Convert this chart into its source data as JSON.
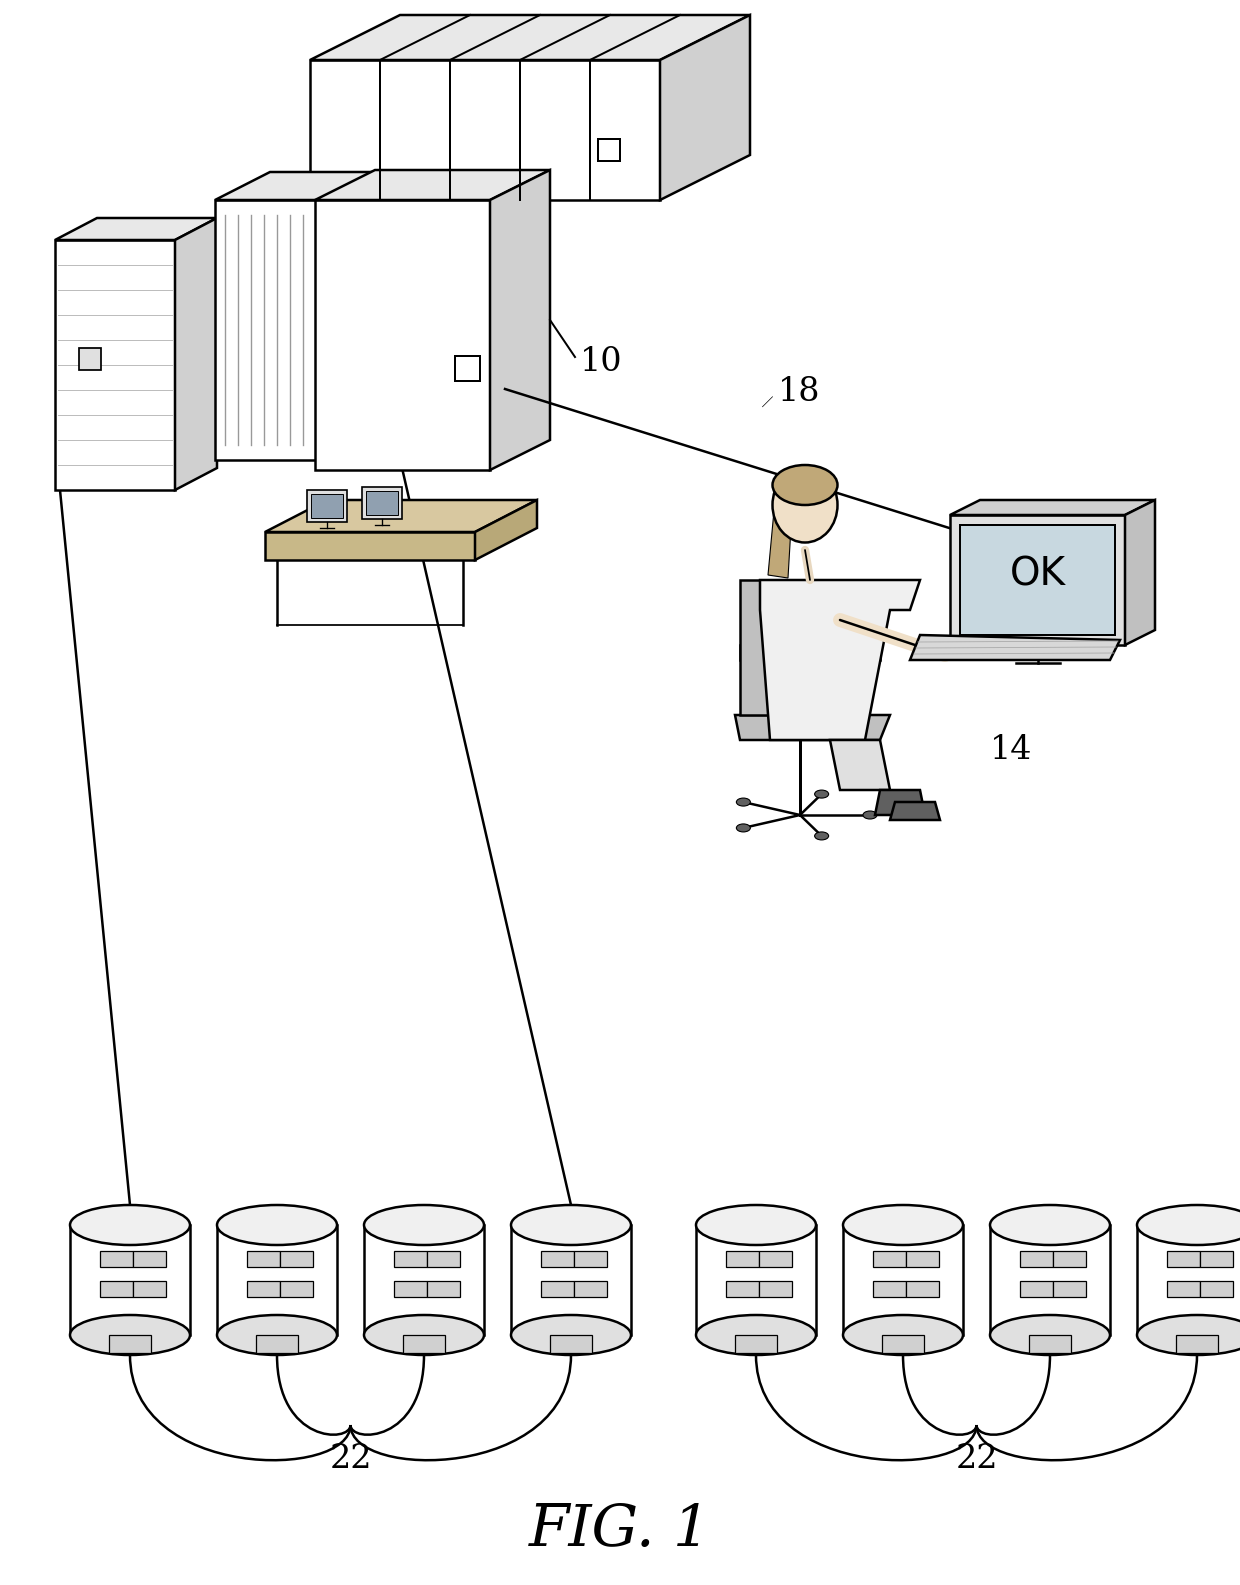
{
  "background_color": "#ffffff",
  "line_color": "#000000",
  "label_10": "10",
  "label_14": "14",
  "label_18": "18",
  "label_22a": "22",
  "label_22b": "22",
  "fig_label": "FIG. 1",
  "fig_width": 1240,
  "fig_height": 1585,
  "rack_fill": "#f5f5f5",
  "rack_top_fill": "#e8e8e8",
  "rack_side_fill": "#d8d8d8",
  "vent_color": "#aaaaaa",
  "screen_fill": "#c8d8e0"
}
